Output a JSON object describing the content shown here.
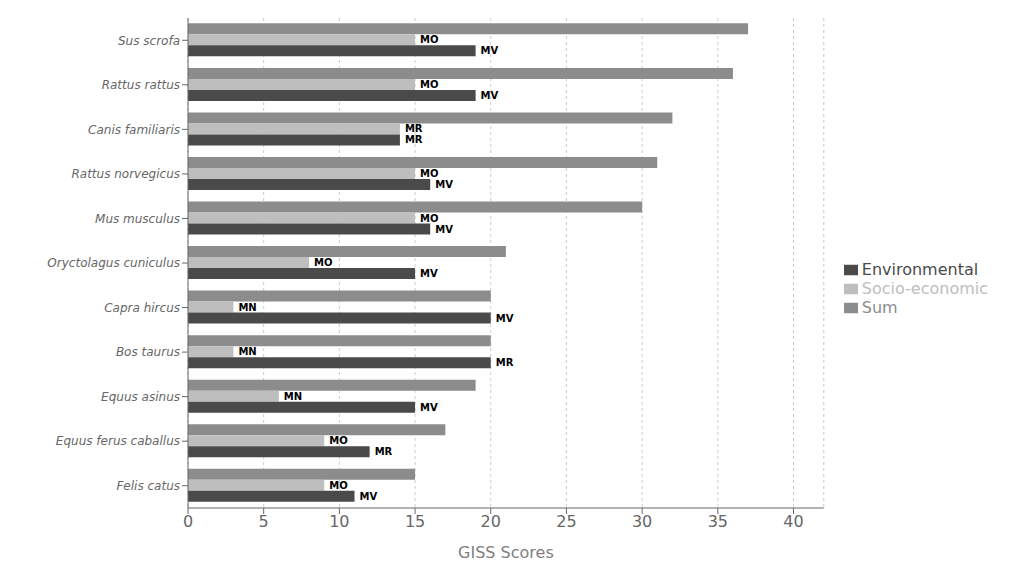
{
  "chart_data": {
    "type": "bar",
    "orientation": "horizontal",
    "categories": [
      "Sus scrofa",
      "Rattus rattus",
      "Canis familiaris",
      "Rattus norvegicus",
      "Mus musculus",
      "Oryctolagus cuniculus",
      "Capra hircus",
      "Bos taurus",
      "Equus asinus",
      "Equus ferus caballus",
      "Felis catus"
    ],
    "series": [
      {
        "name": "Sum",
        "color": "#8c8c8c",
        "values": [
          37,
          36,
          32,
          31,
          30,
          21,
          20,
          20,
          19,
          17,
          15
        ]
      },
      {
        "name": "Socio-economic",
        "color": "#bebebe",
        "values": [
          15,
          15,
          14,
          15,
          15,
          8,
          3,
          3,
          6,
          9,
          9
        ],
        "labels": [
          "MO",
          "MO",
          "MR",
          "MO",
          "MO",
          "MO",
          "MN",
          "MN",
          "MN",
          "MO",
          "MO"
        ]
      },
      {
        "name": "Environmental",
        "color": "#4a4a4a",
        "values": [
          19,
          19,
          14,
          16,
          16,
          15,
          20,
          20,
          15,
          12,
          11
        ],
        "labels": [
          "MV",
          "MV",
          "MR",
          "MV",
          "MV",
          "MV",
          "MV",
          "MR",
          "MV",
          "MR",
          "MV"
        ]
      }
    ],
    "xlabel": "GISS Scores",
    "xlim": [
      0,
      42
    ],
    "xticks": [
      0,
      5,
      10,
      15,
      20,
      25,
      30,
      35,
      40
    ],
    "grid": "x",
    "legend": "right"
  }
}
